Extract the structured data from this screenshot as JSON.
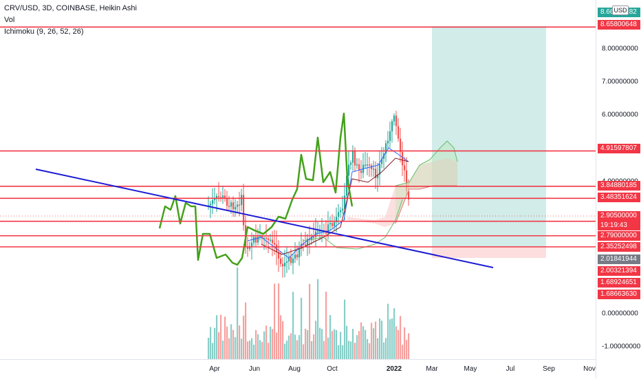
{
  "legend": {
    "symbol_line": "CRV/USD, 3D, COINBASE, Heikin Ashi",
    "vol_line": "Vol",
    "ichimoku_line": "Ichimoku (9, 26, 52, 26)"
  },
  "currency": "USD",
  "price_scale": {
    "ticks": [
      {
        "label": "8.00000000",
        "value": 8
      },
      {
        "label": "7.00000000",
        "value": 7
      },
      {
        "label": "6.00000000",
        "value": 6
      },
      {
        "label": "4.00000000",
        "value": 4
      },
      {
        "label": "0.00000000",
        "value": 0
      },
      {
        "label": "-1.00000000",
        "value": -1
      }
    ],
    "tags": [
      {
        "label": "8.66000182",
        "color": "#26a69a",
        "value": 8.66
      },
      {
        "label": "8.65800648",
        "color": "#f23645",
        "value": 8.658
      },
      {
        "label": "4.91597807",
        "color": "#f23645",
        "value": 4.916
      },
      {
        "label": "3.84880185",
        "color": "#f23645",
        "value": 3.849
      },
      {
        "label": "3.48351624",
        "color": "#f23645",
        "value": 3.484
      },
      {
        "label": "2.90500000",
        "color": "#f23645",
        "value": 2.905
      },
      {
        "label": "19:19:43",
        "color": "#f23645",
        "value": 2.63
      },
      {
        "label": "2.79000000",
        "color": "#f23645",
        "value": 2.55
      },
      {
        "label": "2.35252498",
        "color": "#f23645",
        "value": 2.24
      },
      {
        "label": "2.01841944",
        "color": "#787b86",
        "value": 1.88
      },
      {
        "label": "2.00321394",
        "color": "#f23645",
        "value": 1.56
      },
      {
        "label": "1.68924651",
        "color": "#f23645",
        "value": 1.23
      },
      {
        "label": "1.68663630",
        "color": "#f23645",
        "value": 0.9
      }
    ]
  },
  "time_scale": [
    {
      "label": "Apr",
      "bold": false
    },
    {
      "label": "Jun",
      "bold": false
    },
    {
      "label": "Aug",
      "bold": false
    },
    {
      "label": "Oct",
      "bold": false
    },
    {
      "label": "2022",
      "bold": true
    },
    {
      "label": "Mar",
      "bold": false
    },
    {
      "label": "May",
      "bold": false
    },
    {
      "label": "Jul",
      "bold": false
    },
    {
      "label": "Sep",
      "bold": false
    },
    {
      "label": "Nov",
      "bold": false
    }
  ],
  "horizontal_levels": [
    8.658,
    4.916,
    3.849,
    3.484,
    2.79,
    2.353,
    2.018
  ],
  "colors": {
    "resistance": "#f23645",
    "trendline": "#1b1bd4",
    "up": "#26a69a",
    "down": "#ef5350",
    "tenkan": "#2962ff",
    "kijun": "#801922",
    "chikou": "#43a01a",
    "cloud_up": "#b6e5b0",
    "cloud_down": "#f7c7c4",
    "target_zone": "#b2dfdb",
    "stop_zone": "#fcd6d6"
  }
}
